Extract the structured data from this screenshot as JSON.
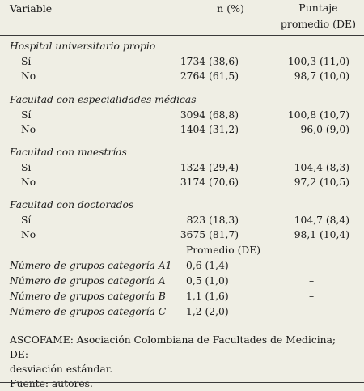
{
  "header": {
    "variable": "Variable",
    "n_pct": "n (%)",
    "puntaje_line1": "Puntaje",
    "puntaje_line2": "promedio (DE)"
  },
  "sections": [
    {
      "title": "Hospital universitario propio",
      "rows": [
        {
          "label": "Sí",
          "n": "1734 (38,6)",
          "puntaje": "100,3 (11,0)"
        },
        {
          "label": "No",
          "n": "2764 (61,5)",
          "puntaje": "98,7 (10,0)"
        }
      ]
    },
    {
      "title": "Facultad con especialidades médicas",
      "rows": [
        {
          "label": "Sí",
          "n": "3094 (68,8)",
          "puntaje": "100,8 (10,7)"
        },
        {
          "label": "No",
          "n": "1404 (31,2)",
          "puntaje": "96,0 (9,0)"
        }
      ]
    },
    {
      "title": "Facultad con maestrías",
      "rows": [
        {
          "label": "Si",
          "n": "1324 (29,4)",
          "puntaje": "104,4 (8,3)"
        },
        {
          "label": "No",
          "n": "3174 (70,6)",
          "puntaje": "97,2 (10,5)"
        }
      ]
    },
    {
      "title": "Facultad con doctorados",
      "rows": [
        {
          "label": "Sí",
          "n": "823 (18,3)",
          "puntaje": "104,7 (8,4)"
        },
        {
          "label": "No",
          "n": "3675 (81,7)",
          "puntaje": "98,1 (10,4)"
        }
      ]
    }
  ],
  "promedio_header": "Promedio (DE)",
  "groups": [
    {
      "label": "Número de grupos categoría A1",
      "value": "0,6 (1,4)",
      "puntaje": "–"
    },
    {
      "label": "Número de grupos categoría A",
      "value": "0,5 (1,0)",
      "puntaje": "–"
    },
    {
      "label": "Número de grupos categoría B",
      "value": "1,1 (1,6)",
      "puntaje": "–"
    },
    {
      "label": "Número de grupos categoría C",
      "value": "1,2 (2,0)",
      "puntaje": "–"
    }
  ],
  "footnote": {
    "line1": "ASCOFAME: Asociación Colombiana de Facultades de Medicina; DE:",
    "line2": "desviación estándar.",
    "line3": "Fuente: autores."
  }
}
